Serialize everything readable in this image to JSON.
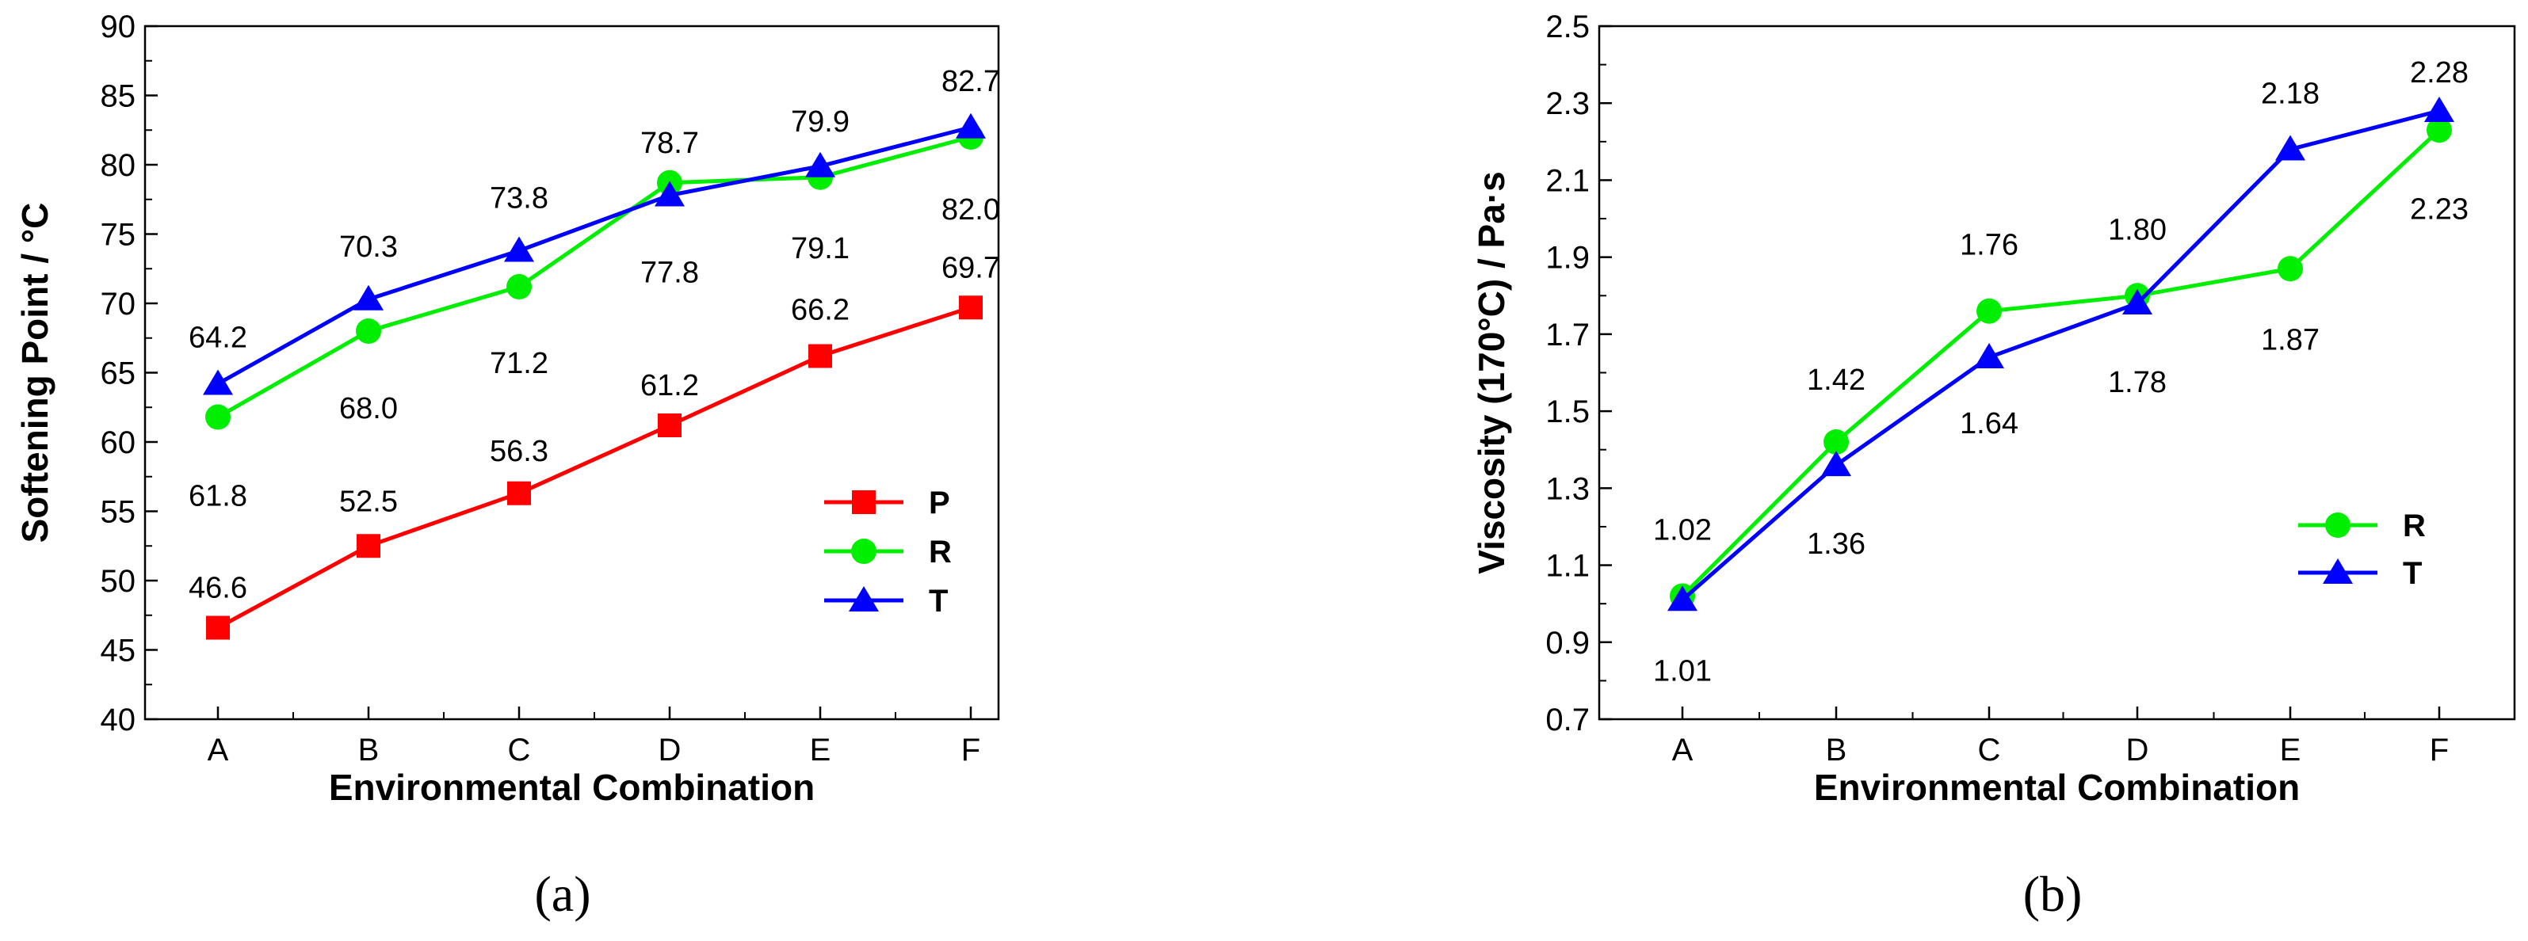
{
  "chart_data": [
    {
      "type": "line",
      "panel_label": "(a)",
      "categories": [
        "A",
        "B",
        "C",
        "D",
        "E",
        "F"
      ],
      "xlabel": "Environmental Combination",
      "ylabel": "Softening Point / °C",
      "ylim": [
        40,
        90
      ],
      "yticks": [
        40,
        45,
        50,
        55,
        60,
        65,
        70,
        75,
        80,
        85,
        90
      ],
      "legend_position": "center-right",
      "series": [
        {
          "name": "P",
          "color": "#ff0000",
          "marker": "square",
          "values": [
            46.6,
            52.5,
            56.3,
            61.2,
            66.2,
            69.7
          ],
          "labels": [
            "46.6",
            "52.5",
            "56.3",
            "61.2",
            "66.2",
            "69.7"
          ]
        },
        {
          "name": "R",
          "color": "#00ee00",
          "marker": "circle",
          "values": [
            61.8,
            68.0,
            71.2,
            78.7,
            79.1,
            82.0
          ],
          "labels": [
            "61.8",
            "68.0",
            "71.2",
            "78.7",
            "79.1",
            "82.0"
          ]
        },
        {
          "name": "T",
          "color": "#0000ff",
          "marker": "triangle",
          "values": [
            64.2,
            70.3,
            73.8,
            77.8,
            79.9,
            82.7
          ],
          "labels": [
            "64.2",
            "70.3",
            "73.8",
            "77.8",
            "79.9",
            "82.7"
          ]
        }
      ]
    },
    {
      "type": "line",
      "panel_label": "(b)",
      "categories": [
        "A",
        "B",
        "C",
        "D",
        "E",
        "F"
      ],
      "xlabel": "Environmental Combination",
      "ylabel": "Viscosity (170°C) / Pa·s",
      "ylim": [
        0.7,
        2.5
      ],
      "yticks": [
        "0.7",
        "0.9",
        "1.1",
        "1.3",
        "1.5",
        "1.7",
        "1.9",
        "2.1",
        "2.3",
        "2.5"
      ],
      "legend_position": "lower-right",
      "series": [
        {
          "name": "R",
          "color": "#00ee00",
          "marker": "circle",
          "values": [
            1.02,
            1.42,
            1.76,
            1.8,
            1.87,
            2.23
          ],
          "labels": [
            "1.02",
            "1.42",
            "1.76",
            "1.80",
            "1.87",
            "2.23"
          ]
        },
        {
          "name": "T",
          "color": "#0000ff",
          "marker": "triangle",
          "values": [
            1.01,
            1.36,
            1.64,
            1.78,
            2.18,
            2.28
          ],
          "labels": [
            "1.01",
            "1.36",
            "1.64",
            "1.78",
            "2.18",
            "2.28"
          ]
        }
      ]
    }
  ]
}
